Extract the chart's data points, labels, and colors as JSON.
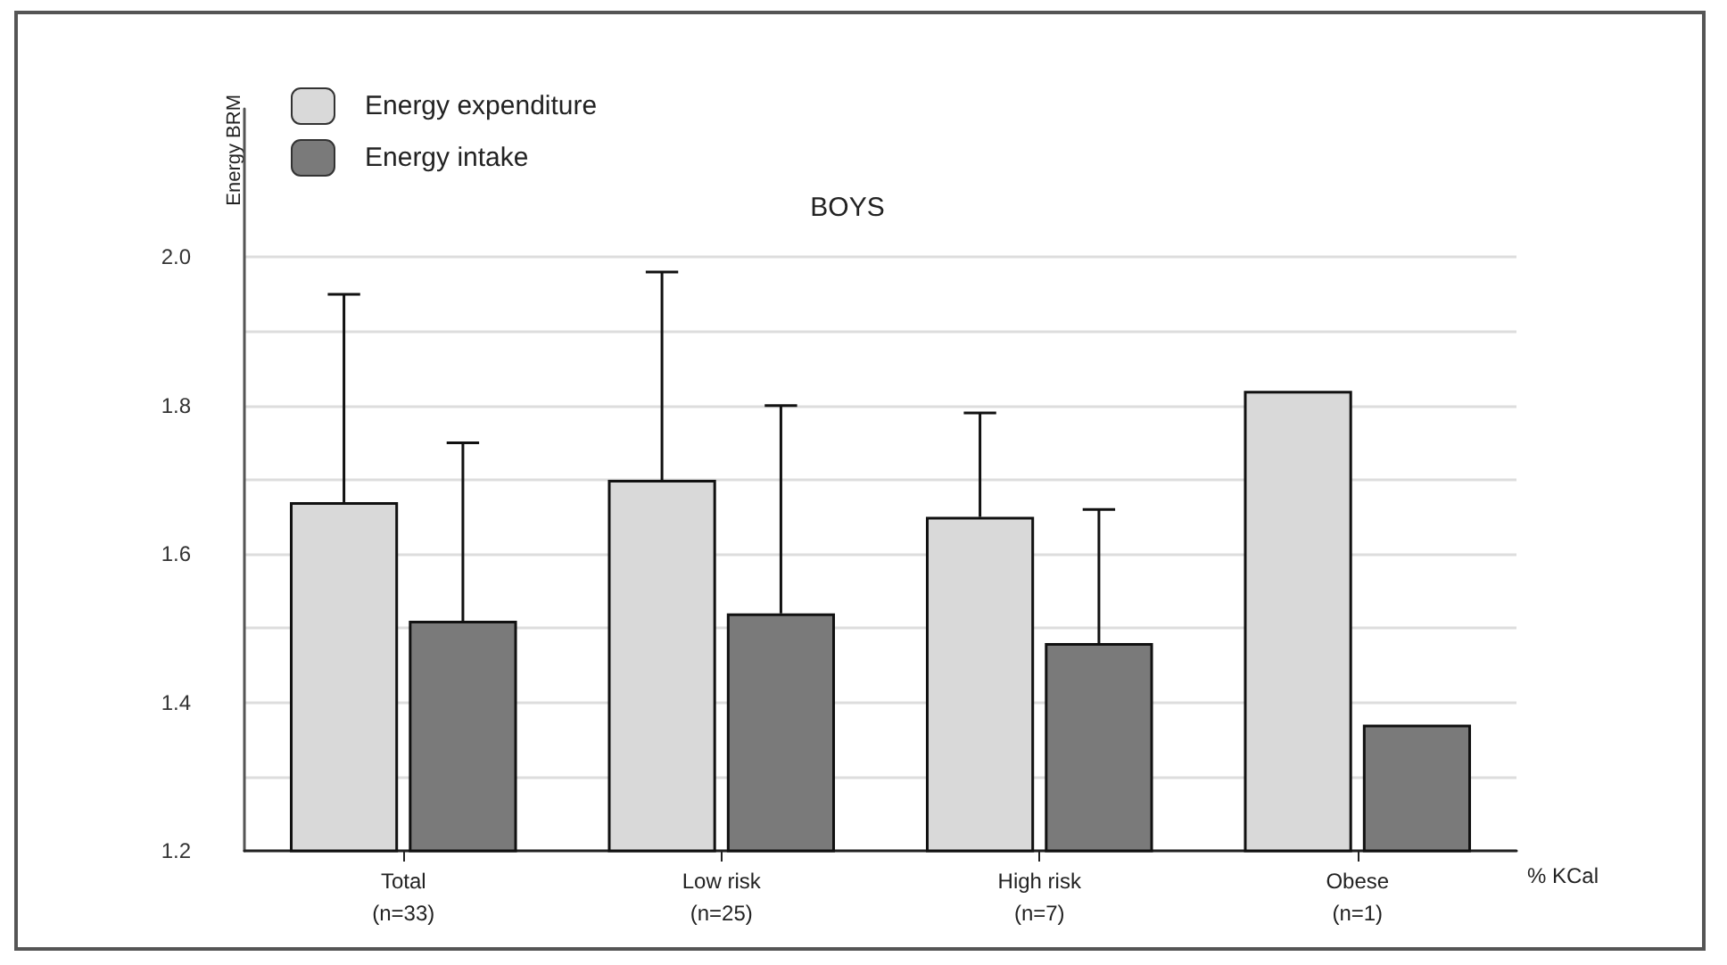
{
  "chart_data": {
    "type": "bar",
    "title": "BOYS",
    "ylabel": "Energy BRM",
    "xlabel": "% KCal",
    "categories": [
      "Total\n(n=33)",
      "Low risk\n(n=25)",
      "High risk\n(n=7)",
      "Obese\n(n=1)"
    ],
    "series": [
      {
        "name": "Energy expenditure",
        "color": "#d9d9d9",
        "values": [
          1.67,
          1.7,
          1.65,
          1.82
        ],
        "errors": [
          [
            1.67,
            1.95
          ],
          [
            1.7,
            1.98
          ],
          [
            1.65,
            1.79
          ],
          null
        ]
      },
      {
        "name": "Energy intake",
        "color": "#7a7a7a",
        "values": [
          1.51,
          1.52,
          1.48,
          1.37
        ],
        "errors": [
          [
            1.51,
            1.75
          ],
          [
            1.52,
            1.8
          ],
          [
            1.48,
            1.66
          ],
          null
        ]
      }
    ],
    "ylim": [
      1.2,
      2.2
    ],
    "yticks": [
      1.2,
      {
        "value": 1.3,
        "label": null
      },
      1.4,
      {
        "value": 1.5,
        "label": null
      },
      1.6,
      {
        "value": 1.7,
        "label": null
      },
      1.8,
      {
        "value": 1.9,
        "label": null
      },
      {
        "value": 2.0,
        "label": "2.0"
      }
    ],
    "grid": "y",
    "legend": "top left"
  }
}
